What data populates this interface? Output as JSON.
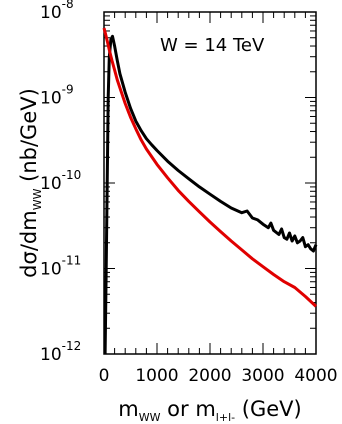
{
  "chart_data": {
    "type": "line",
    "annotation": "W = 14 TeV",
    "xlabel": {
      "main": "m",
      "sub1": "WW",
      "mid": " or m",
      "sub2": "l+l-",
      "tail": " (GeV)"
    },
    "ylabel": {
      "main": "dσ/dm",
      "sub": "WW",
      "tail": " (nb/GeV)"
    },
    "x_scale": "linear",
    "y_scale": "log",
    "xlim": [
      0,
      4000
    ],
    "ylim": [
      1e-12,
      1e-08
    ],
    "x_ticks": [
      {
        "value": 0,
        "label": "0"
      },
      {
        "value": 1000,
        "label": "1000"
      },
      {
        "value": 2000,
        "label": "2000"
      },
      {
        "value": 3000,
        "label": "3000"
      },
      {
        "value": 4000,
        "label": "4000"
      }
    ],
    "y_ticks": [
      {
        "value": 1e-12,
        "base": "10",
        "exp": "-12"
      },
      {
        "value": 1e-11,
        "base": "10",
        "exp": "-11"
      },
      {
        "value": 1e-10,
        "base": "10",
        "exp": "-10"
      },
      {
        "value": 1e-09,
        "base": "10",
        "exp": "-9"
      },
      {
        "value": 1e-08,
        "base": "10",
        "exp": "-8"
      }
    ],
    "series": [
      {
        "color": "#000000",
        "x": [
          20,
          40,
          60,
          80,
          100,
          130,
          160,
          200,
          250,
          300,
          400,
          500,
          600,
          700,
          800,
          900,
          1000,
          1200,
          1400,
          1600,
          1800,
          2000,
          2200,
          2400,
          2600,
          2700,
          2800,
          2900,
          3000,
          3100,
          3150,
          3200,
          3300,
          3350,
          3400,
          3450,
          3500,
          3550,
          3600,
          3650,
          3700,
          3750,
          3800,
          3850,
          3900,
          3950,
          4000
        ],
        "y": [
          1e-12,
          8e-12,
          1e-10,
          1e-09,
          3e-09,
          4.8e-09,
          5.2e-09,
          4e-09,
          2.7e-09,
          1.9e-09,
          1.15e-09,
          7.5e-10,
          5.3e-10,
          4.1e-10,
          3.3e-10,
          2.8e-10,
          2.4e-10,
          1.8e-10,
          1.4e-10,
          1.12e-10,
          9e-11,
          7.4e-11,
          6.1e-11,
          5.1e-11,
          4.5e-11,
          4.7e-11,
          3.9e-11,
          3.7e-11,
          3.3e-11,
          3e-11,
          3.4e-11,
          2.8e-11,
          2.5e-11,
          2.9e-11,
          2.3e-11,
          2.2e-11,
          2.6e-11,
          2.1e-11,
          2.4e-11,
          2e-11,
          2.1e-11,
          2.3e-11,
          1.8e-11,
          1.9e-11,
          1.7e-11,
          1.6e-11,
          1.9e-11
        ]
      },
      {
        "color": "#e00000",
        "x": [
          0,
          30,
          60,
          100,
          150,
          200,
          250,
          300,
          400,
          500,
          600,
          700,
          800,
          1000,
          1200,
          1400,
          1600,
          1800,
          2000,
          2200,
          2400,
          2600,
          2800,
          3000,
          3200,
          3400,
          3600,
          3800,
          4000
        ],
        "y": [
          6.5e-09,
          5.5e-09,
          4.6e-09,
          3.6e-09,
          2.7e-09,
          2.1e-09,
          1.6e-09,
          1.3e-09,
          8.5e-10,
          5.9e-10,
          4.3e-10,
          3.2e-10,
          2.5e-10,
          1.65e-10,
          1.15e-10,
          8.2e-11,
          6.1e-11,
          4.6e-11,
          3.5e-11,
          2.7e-11,
          2.1e-11,
          1.65e-11,
          1.3e-11,
          1.05e-11,
          8.5e-12,
          7e-12,
          6e-12,
          4.7e-12,
          3.6e-12
        ]
      }
    ]
  }
}
